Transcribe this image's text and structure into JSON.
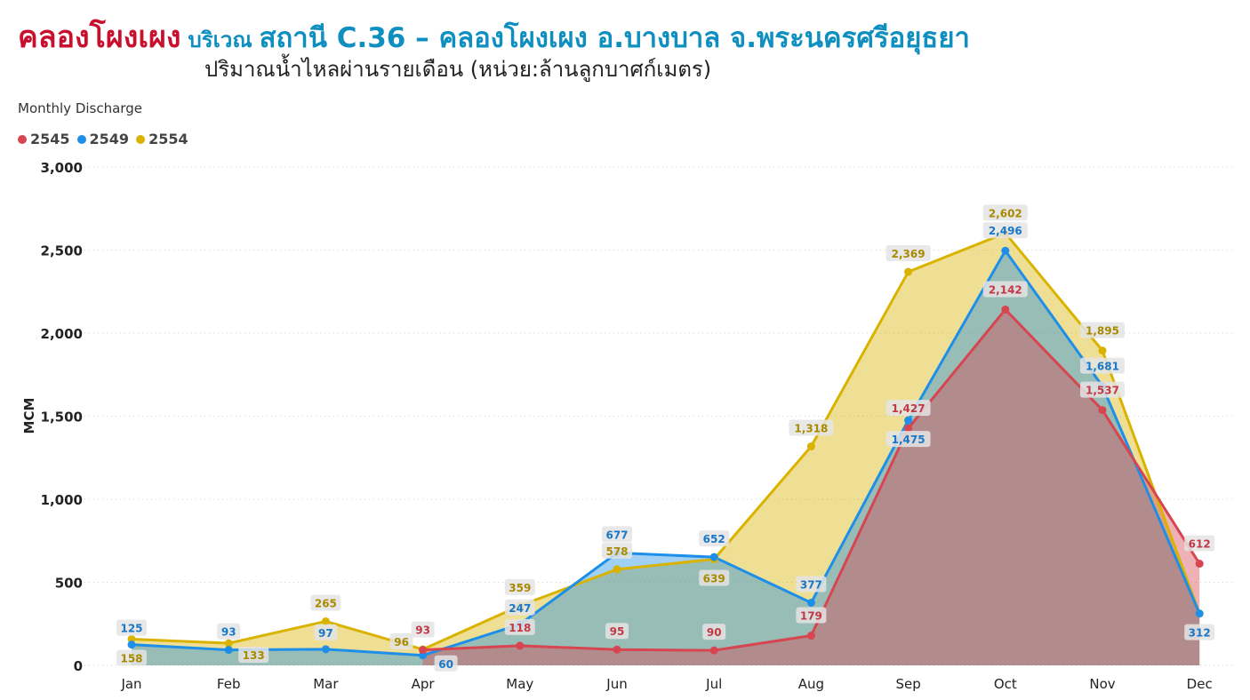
{
  "header": {
    "station_name": "คลองโผงเผง",
    "area_label": "บริเวณ",
    "station_detail": "สถานี C.36 – คลองโผงเผง อ.บางบาล จ.พระนครศรีอยุธยา",
    "subtitle": "ปริมาณน้ำไหลผ่านรายเดือน (หน่วย:ล้านลูกบาศก์เมตร)"
  },
  "chart_data": {
    "type": "area",
    "title": "Monthly Discharge",
    "xlabel": "",
    "ylabel": "MCM",
    "ylim": [
      0,
      3000
    ],
    "yticks": [
      0,
      500,
      1000,
      1500,
      2000,
      2500,
      3000
    ],
    "ytick_labels": [
      "0",
      "500",
      "1,000",
      "1,500",
      "2,000",
      "2,500",
      "3,000"
    ],
    "grid": true,
    "legend_position": "top-left",
    "categories": [
      "Jan",
      "Feb",
      "Mar",
      "Apr",
      "May",
      "Jun",
      "Jul",
      "Aug",
      "Sep",
      "Oct",
      "Nov",
      "Dec"
    ],
    "series": [
      {
        "name": "2545",
        "color": "#d64550",
        "values": [
          null,
          null,
          null,
          93,
          118,
          95,
          90,
          179,
          1427,
          2142,
          1537,
          612
        ],
        "labels": [
          "",
          "",
          "",
          "93",
          "118",
          "95",
          "90",
          "179",
          "1,427",
          "2,142",
          "1,537",
          "612"
        ]
      },
      {
        "name": "2549",
        "color": "#1e8fe8",
        "values": [
          125,
          93,
          97,
          60,
          247,
          677,
          652,
          377,
          1475,
          2496,
          1681,
          312
        ],
        "labels": [
          "125",
          "93",
          "97",
          "60",
          "247",
          "677",
          "652",
          "377",
          "1,475",
          "2,496",
          "1,681",
          "312"
        ]
      },
      {
        "name": "2554",
        "color": "#d9b300",
        "values": [
          158,
          133,
          265,
          96,
          359,
          578,
          639,
          1318,
          2369,
          2602,
          1895,
          312
        ],
        "labels": [
          "158",
          "133",
          "265",
          "96",
          "359",
          "578",
          "639",
          "1,318",
          "2,369",
          "2,602",
          "1,895",
          ""
        ]
      }
    ]
  }
}
